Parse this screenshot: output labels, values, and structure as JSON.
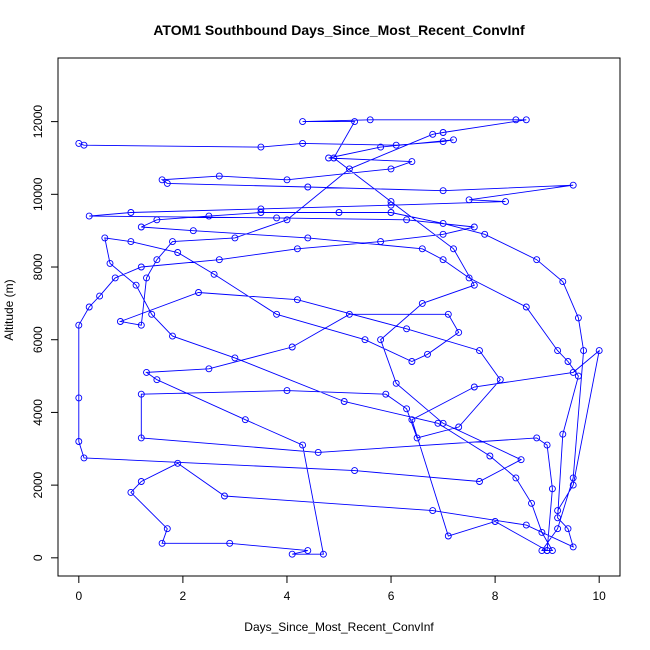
{
  "chart_data": {
    "type": "line",
    "title": "ATOM1 Southbound Days_Since_Most_Recent_ConvInf",
    "xlabel": "Days_Since_Most_Recent_ConvInf",
    "ylabel": "Altitude (m)",
    "xlim": [
      -0.4,
      10.4
    ],
    "ylim": [
      -500,
      13750
    ],
    "xticks": [
      0,
      2,
      4,
      6,
      8,
      10
    ],
    "yticks": [
      0,
      2000,
      4000,
      6000,
      8000,
      10000,
      12000
    ],
    "line_color": "#0000ff",
    "marker": "open-circle",
    "series": [
      {
        "values": [
          [
            0.0,
            11400
          ],
          [
            0.1,
            11350
          ],
          [
            3.5,
            11300
          ],
          [
            4.3,
            11400
          ],
          [
            6.1,
            11350
          ],
          [
            7.0,
            11450
          ],
          [
            7.2,
            11500
          ],
          [
            5.8,
            11300
          ],
          [
            4.8,
            11000
          ],
          [
            6.4,
            10900
          ],
          [
            6.0,
            10700
          ],
          [
            4.0,
            10400
          ],
          [
            2.7,
            10500
          ],
          [
            1.6,
            10400
          ],
          [
            1.7,
            10300
          ],
          [
            4.4,
            10200
          ],
          [
            7.0,
            10100
          ],
          [
            9.5,
            10250
          ],
          [
            7.5,
            9850
          ],
          [
            8.2,
            9800
          ],
          [
            6.0,
            9700
          ],
          [
            3.5,
            9600
          ],
          [
            1.0,
            9500
          ],
          [
            0.2,
            9400
          ],
          [
            3.8,
            9350
          ],
          [
            6.3,
            9300
          ],
          [
            7.6,
            9100
          ],
          [
            7.0,
            8900
          ],
          [
            5.8,
            8700
          ],
          [
            4.2,
            8500
          ],
          [
            2.7,
            8200
          ],
          [
            1.2,
            8000
          ],
          [
            0.7,
            7700
          ],
          [
            0.4,
            7200
          ],
          [
            0.2,
            6900
          ],
          [
            0.0,
            6400
          ],
          [
            0.0,
            4400
          ],
          [
            0.0,
            3200
          ],
          [
            0.1,
            2750
          ],
          [
            5.3,
            2400
          ],
          [
            7.7,
            2100
          ],
          [
            8.5,
            2700
          ],
          [
            7.0,
            3700
          ],
          [
            6.1,
            4800
          ],
          [
            5.8,
            6000
          ],
          [
            6.6,
            7000
          ],
          [
            7.6,
            7500
          ],
          [
            7.2,
            8500
          ],
          [
            6.0,
            9800
          ],
          [
            4.9,
            11000
          ],
          [
            5.3,
            12000
          ],
          [
            4.3,
            12000
          ],
          [
            5.6,
            12050
          ],
          [
            8.4,
            12050
          ],
          [
            8.6,
            12050
          ],
          [
            7.0,
            11700
          ],
          [
            6.8,
            11650
          ],
          [
            5.2,
            10700
          ],
          [
            4.0,
            9300
          ],
          [
            3.0,
            8800
          ],
          [
            1.8,
            8700
          ],
          [
            1.5,
            8200
          ],
          [
            1.3,
            7700
          ],
          [
            1.2,
            6400
          ],
          [
            0.8,
            6500
          ],
          [
            2.3,
            7300
          ],
          [
            4.2,
            7100
          ],
          [
            6.3,
            6300
          ],
          [
            7.7,
            5700
          ],
          [
            8.1,
            4900
          ],
          [
            7.3,
            3600
          ],
          [
            6.5,
            3300
          ],
          [
            6.3,
            4100
          ],
          [
            5.9,
            4500
          ],
          [
            4.0,
            4600
          ],
          [
            1.2,
            4500
          ],
          [
            1.2,
            3300
          ],
          [
            4.6,
            2900
          ],
          [
            8.8,
            3300
          ],
          [
            9.0,
            3100
          ],
          [
            9.1,
            1900
          ],
          [
            9.0,
            200
          ],
          [
            8.9,
            200
          ],
          [
            9.2,
            800
          ],
          [
            9.5,
            2200
          ],
          [
            9.7,
            5700
          ],
          [
            9.6,
            6600
          ],
          [
            9.3,
            7600
          ],
          [
            8.8,
            8200
          ],
          [
            7.8,
            8900
          ],
          [
            7.0,
            9200
          ],
          [
            6.0,
            9500
          ],
          [
            5.0,
            9500
          ],
          [
            3.5,
            9500
          ],
          [
            2.5,
            9400
          ],
          [
            1.5,
            9300
          ],
          [
            1.2,
            9100
          ],
          [
            2.2,
            9000
          ],
          [
            4.4,
            8800
          ],
          [
            6.6,
            8500
          ],
          [
            7.0,
            8200
          ],
          [
            7.5,
            7700
          ],
          [
            8.6,
            6900
          ],
          [
            9.2,
            5700
          ],
          [
            9.4,
            5400
          ],
          [
            9.6,
            5000
          ],
          [
            9.3,
            3400
          ],
          [
            9.2,
            1100
          ],
          [
            9.4,
            800
          ],
          [
            9.5,
            300
          ],
          [
            8.6,
            900
          ],
          [
            6.8,
            1300
          ],
          [
            2.8,
            1700
          ],
          [
            1.9,
            2600
          ],
          [
            1.2,
            2100
          ],
          [
            1.0,
            1800
          ],
          [
            1.7,
            800
          ],
          [
            1.6,
            400
          ],
          [
            2.9,
            400
          ],
          [
            4.4,
            200
          ],
          [
            4.1,
            100
          ],
          [
            4.7,
            100
          ],
          [
            4.3,
            3100
          ],
          [
            3.2,
            3800
          ],
          [
            1.5,
            4900
          ],
          [
            1.3,
            5100
          ],
          [
            2.5,
            5200
          ],
          [
            4.1,
            5800
          ],
          [
            5.2,
            6700
          ],
          [
            7.1,
            6700
          ],
          [
            7.3,
            6200
          ],
          [
            6.7,
            5600
          ],
          [
            6.4,
            5400
          ],
          [
            5.5,
            6000
          ],
          [
            3.8,
            6700
          ],
          [
            2.6,
            7800
          ],
          [
            1.9,
            8400
          ],
          [
            1.0,
            8700
          ],
          [
            0.5,
            8800
          ],
          [
            0.6,
            8100
          ],
          [
            1.1,
            7500
          ],
          [
            1.4,
            6700
          ],
          [
            1.8,
            6100
          ],
          [
            3.0,
            5500
          ],
          [
            5.1,
            4300
          ],
          [
            6.9,
            3700
          ],
          [
            7.9,
            2800
          ],
          [
            8.4,
            2200
          ],
          [
            8.7,
            1500
          ],
          [
            8.9,
            700
          ],
          [
            9.1,
            200
          ],
          [
            9.0,
            200
          ],
          [
            8.0,
            1000
          ],
          [
            7.1,
            600
          ],
          [
            6.4,
            3800
          ],
          [
            7.6,
            4700
          ],
          [
            9.5,
            5100
          ],
          [
            10.0,
            5700
          ],
          [
            9.5,
            2000
          ],
          [
            9.2,
            1300
          ]
        ]
      }
    ]
  }
}
